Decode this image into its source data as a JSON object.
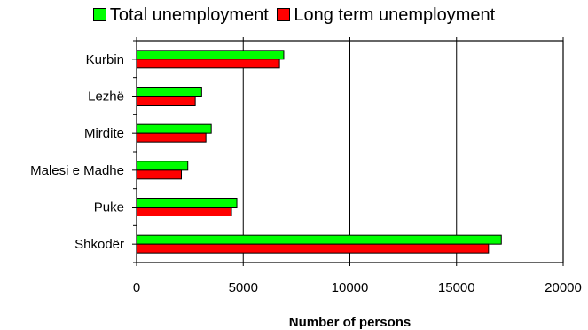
{
  "chart_data": {
    "type": "bar",
    "orientation": "horizontal",
    "title": "",
    "xlabel": "Number of persons",
    "ylabel": "",
    "categories": [
      "Kurbin",
      "Lezhë",
      "Mirdite",
      "Malesi e Madhe",
      "Puke",
      "Shkodër"
    ],
    "series": [
      {
        "name": "Total unemployment",
        "color": "#00ff00",
        "values": [
          6900,
          3050,
          3500,
          2400,
          4700,
          17100
        ]
      },
      {
        "name": "Long term unemployment",
        "color": "#ff0000",
        "values": [
          6700,
          2750,
          3250,
          2100,
          4450,
          16500
        ]
      }
    ],
    "xlim": [
      0,
      20000
    ],
    "xticks": [
      0,
      5000,
      10000,
      15000,
      20000
    ],
    "xtick_labels": [
      "0",
      "5000",
      "10000",
      "15000",
      "20000"
    ],
    "grid": "vertical",
    "legend_position": "top"
  }
}
